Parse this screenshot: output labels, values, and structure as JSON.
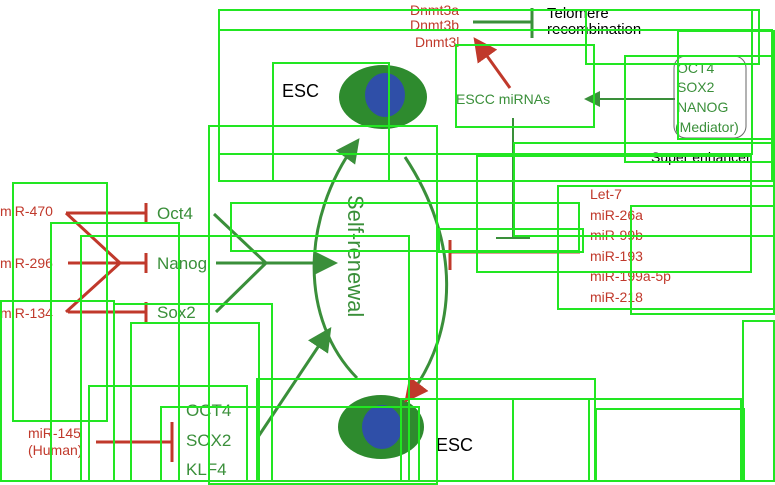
{
  "top_left_red": [
    "Dnmt3a",
    "Dnmt3b",
    "Dnmt3l"
  ],
  "telomere": [
    "Telomere",
    "recombination"
  ],
  "escc_mirnas": "ESCC miRNAs",
  "super_factors": [
    "OCT4",
    "SOX2",
    "NANOG",
    "(Mediator)"
  ],
  "super_enhancer": "Super enhancer",
  "esc_top": "ESC",
  "esc_bottom": "ESC",
  "self_renewal": "Self-renewal",
  "left_mirnas": [
    "miR-470",
    "miR-296",
    "miR-134"
  ],
  "core_factors": [
    "Oct4",
    "Nanog",
    "Sox2"
  ],
  "right_mirnas": [
    "Let-7",
    "miR-26a",
    "miR-99b",
    "miR-193",
    "miR-199a-5p",
    "miR-218"
  ],
  "mir145": [
    "miR-145",
    "(Human)"
  ],
  "human_factors": [
    "OCT4",
    "SOX2",
    "KLF4"
  ],
  "colors": {
    "red": "#c0392b",
    "green": "#3a8f3a",
    "box": "#22e622",
    "cell_outer": "#2e8b2e",
    "cell_inner": "#2f4fa8"
  }
}
